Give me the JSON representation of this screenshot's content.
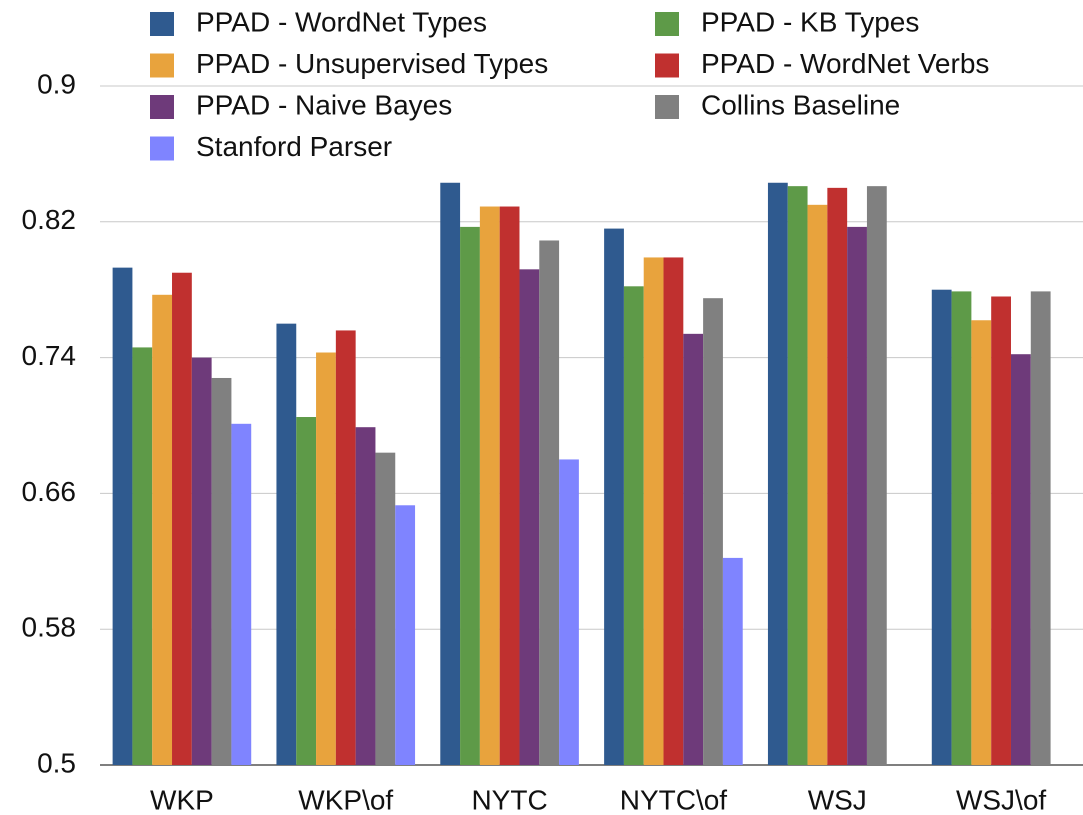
{
  "chart_data": {
    "type": "bar",
    "categories": [
      "WKP",
      "WKP\\of",
      "NYTC",
      "NYTC\\of",
      "WSJ",
      "WSJ\\of"
    ],
    "series": [
      {
        "name": "PPAD - WordNet Types",
        "color": "#2f5a8f",
        "values": [
          0.793,
          0.76,
          0.843,
          0.816,
          0.843,
          0.78
        ]
      },
      {
        "name": "PPAD - KB Types",
        "color": "#5e9a48",
        "values": [
          0.746,
          0.705,
          0.817,
          0.782,
          0.841,
          0.779
        ]
      },
      {
        "name": "PPAD - Unsupervised Types",
        "color": "#e8a33d",
        "values": [
          0.777,
          0.743,
          0.829,
          0.799,
          0.83,
          0.762
        ]
      },
      {
        "name": "PPAD - WordNet Verbs",
        "color": "#c0302f",
        "values": [
          0.79,
          0.756,
          0.829,
          0.799,
          0.84,
          0.776
        ]
      },
      {
        "name": "PPAD - Naive Bayes",
        "color": "#6e3a7a",
        "values": [
          0.74,
          0.699,
          0.792,
          0.754,
          0.817,
          0.742
        ]
      },
      {
        "name": "Collins Baseline",
        "color": "#808080",
        "values": [
          0.728,
          0.684,
          0.809,
          0.775,
          0.841,
          0.779
        ]
      },
      {
        "name": "Stanford Parser",
        "color": "#7f84ff",
        "values": [
          0.701,
          0.653,
          0.68,
          0.622,
          null,
          null
        ]
      }
    ],
    "ylim": [
      0.5,
      0.9
    ],
    "yticks": [
      0.5,
      0.58,
      0.66,
      0.74,
      0.82,
      0.9
    ],
    "grid": true,
    "legend": "top"
  }
}
